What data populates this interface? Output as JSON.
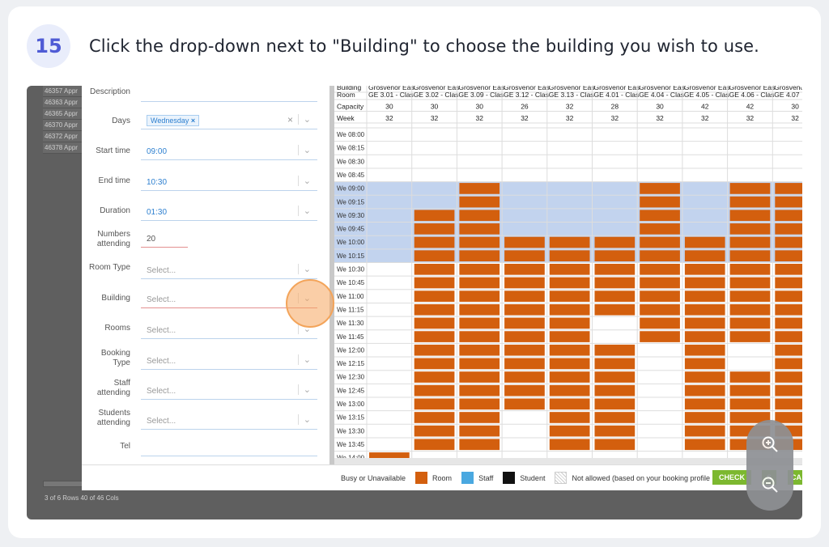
{
  "step": {
    "number": "15",
    "instruction": "Click the drop-down next to \"Building\" to choose the building you wish to use."
  },
  "background_table": {
    "rows": [
      "46357 Appr",
      "46363 Appr",
      "46365 Appr",
      "46370 Appr",
      "46372 Appr",
      "46378 Appr"
    ],
    "footer": "3 of 6 Rows    40 of 46 Cols"
  },
  "form": {
    "description_label": "Description",
    "days_label": "Days",
    "days_value": "Wednesday",
    "start_label": "Start time",
    "start_value": "09:00",
    "end_label": "End time",
    "end_value": "10:30",
    "duration_label": "Duration",
    "duration_value": "01:30",
    "numbers_label": "Numbers attending",
    "numbers_value": "20",
    "roomtype_label": "Room Type",
    "building_label": "Building",
    "rooms_label": "Rooms",
    "bookingtype_label": "Booking Type",
    "staff_label": "Staff attending",
    "students_label": "Students attending",
    "tel_label": "Tel",
    "select_placeholder": "Select..."
  },
  "grid": {
    "header_labels": [
      "Building",
      "Room",
      "Capacity",
      "Week"
    ],
    "buildings": "Grosvenor Eas",
    "rooms": [
      "GE 3.01 - Clas",
      "GE 3.02 - Clas",
      "GE 3.09 - Clas",
      "GE 3.12 - Clas",
      "GE 3.13 - Clas",
      "GE 4.01 - Clas",
      "GE 4.04 - Clas",
      "GE 4.05 - Clas",
      "GE 4.06 - Clas",
      "GE 4.07"
    ],
    "capacity": [
      "30",
      "30",
      "30",
      "26",
      "32",
      "28",
      "30",
      "42",
      "42",
      "30"
    ],
    "week": [
      "32",
      "32",
      "32",
      "32",
      "32",
      "32",
      "32",
      "32",
      "32",
      "32"
    ],
    "times": [
      "We 08:00",
      "We 08:15",
      "We 08:30",
      "We 08:45",
      "We 09:00",
      "We 09:15",
      "We 09:30",
      "We 09:45",
      "We 10:00",
      "We 10:15",
      "We 10:30",
      "We 10:45",
      "We 11:00",
      "We 11:15",
      "We 11:30",
      "We 11:45",
      "We 12:00",
      "We 12:15",
      "We 12:30",
      "We 12:45",
      "We 13:00",
      "We 13:15",
      "We 13:30",
      "We 13:45",
      "We 14:00"
    ],
    "booked": [
      [
        24
      ],
      [
        6,
        7,
        8,
        9,
        10,
        11,
        12,
        13,
        14,
        15,
        16,
        17,
        18,
        19,
        20,
        21,
        22,
        23
      ],
      [
        4,
        5,
        6,
        7,
        8,
        9,
        10,
        11,
        12,
        13,
        14,
        15,
        16,
        17,
        18,
        19,
        20,
        21,
        22,
        23
      ],
      [
        8,
        9,
        10,
        11,
        12,
        13,
        14,
        15,
        16,
        17,
        18,
        19,
        20
      ],
      [
        8,
        9,
        10,
        11,
        12,
        13,
        14,
        15,
        16,
        17,
        18,
        19,
        20,
        21,
        22,
        23
      ],
      [
        8,
        9,
        10,
        11,
        12,
        13,
        16,
        17,
        18,
        19,
        20,
        21,
        22,
        23
      ],
      [
        4,
        5,
        6,
        7,
        8,
        9,
        10,
        11,
        12,
        13,
        14,
        15
      ],
      [
        8,
        9,
        10,
        11,
        12,
        13,
        14,
        15,
        16,
        17,
        18,
        19,
        20,
        21,
        22,
        23
      ],
      [
        4,
        5,
        6,
        7,
        8,
        9,
        10,
        11,
        12,
        13,
        14,
        15,
        18,
        19,
        20,
        21,
        22,
        23
      ],
      [
        4,
        5,
        6,
        7,
        8,
        9,
        10,
        11,
        12,
        13,
        14,
        15,
        16,
        17,
        18,
        19,
        20,
        21,
        22,
        23
      ]
    ],
    "selected_rows": [
      4,
      5,
      6,
      7,
      8,
      9
    ]
  },
  "legend": {
    "busy": "Busy or Unavailable",
    "room": "Room",
    "staff": "Staff",
    "student": "Student",
    "not_allowed": "Not allowed (based on your booking profile p",
    "check": "CHECK",
    "save": "S",
    "cancel": "CA"
  },
  "colors": {
    "room": "#d35f0e",
    "staff": "#4aa8e0",
    "student": "#111111",
    "selected": "#c2d3ee",
    "accent": "#4f5bd5"
  },
  "icons": {
    "zoom_in": "zoom-in-icon",
    "zoom_out": "zoom-out-icon"
  }
}
